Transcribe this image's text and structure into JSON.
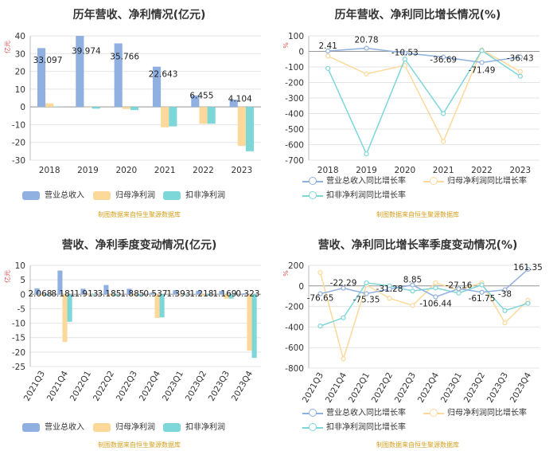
{
  "panels": [
    {
      "title": "历年营收、净利情况(亿元)",
      "source": "制图数据来自恒生聚源数据库",
      "legend": [
        "营业总收入",
        "归母净利润",
        "扣非净利润"
      ],
      "colors": [
        "#8fb0e0",
        "#fcd89a",
        "#7dd6d8"
      ],
      "unit": "亿元"
    },
    {
      "title": "历年营收、净利同比增长情况(%)",
      "source": "制图数据来自恒生聚源数据库",
      "legend": [
        "营业总收入同比增长率",
        "归母净利润同比增长率",
        "扣非净利润同比增长率"
      ],
      "colors": [
        "#8fb0e0",
        "#fcd89a",
        "#7dd6d8"
      ],
      "unit": "%"
    },
    {
      "title": "营收、净利季度变动情况(亿元)",
      "source": "制图数据来自恒生聚源数据库",
      "legend": [
        "营业总收入",
        "归母净利润",
        "扣非净利润"
      ],
      "colors": [
        "#8fb0e0",
        "#fcd89a",
        "#7dd6d8"
      ],
      "unit": "亿元"
    },
    {
      "title": "营收、净利同比增长率季度变动情况(%)",
      "source": "制图数据来自恒生聚源数据库",
      "legend": [
        "营业总收入同比增长率",
        "归母净利润同比增长率",
        "扣非净利润同比增长率"
      ],
      "colors": [
        "#8fb0e0",
        "#fcd89a",
        "#7dd6d8"
      ],
      "unit": "%"
    }
  ],
  "chart_data": [
    {
      "type": "bar",
      "title": "历年营收、净利情况(亿元)",
      "ylabel": "亿元",
      "categories": [
        "2018",
        "2019",
        "2020",
        "2021",
        "2022",
        "2023"
      ],
      "ylim": [
        -30,
        40
      ],
      "yticks": [
        40,
        30,
        20,
        10,
        0,
        -10,
        -20,
        -30
      ],
      "series": [
        {
          "name": "营业总收入",
          "values": [
            33.097,
            39.974,
            35.766,
            22.643,
            6.455,
            4.104
          ],
          "labels": [
            "33.097",
            "39.974",
            "35.766",
            "22.643",
            "6.455",
            "4.104"
          ]
        },
        {
          "name": "归母净利润",
          "values": [
            2.0,
            -0.3,
            -1.2,
            -11.5,
            -9.5,
            -22.0
          ]
        },
        {
          "name": "扣非净利润",
          "values": [
            0.2,
            -1.0,
            -1.8,
            -11.0,
            -9.5,
            -25.0
          ]
        }
      ]
    },
    {
      "type": "line",
      "title": "历年营收、净利同比增长情况(%)",
      "ylabel": "%",
      "categories": [
        "2018",
        "2019",
        "2020",
        "2021",
        "2022",
        "2023"
      ],
      "ylim": [
        -700,
        100
      ],
      "yticks": [
        100,
        0,
        -100,
        -200,
        -300,
        -400,
        -500,
        -600,
        -700
      ],
      "series": [
        {
          "name": "营业总收入同比增长率",
          "values": [
            2.41,
            20.78,
            -10.53,
            -36.69,
            -71.49,
            -36.43
          ],
          "labels": [
            "2.41",
            "20.78",
            "-10.53",
            "-36.69",
            "-71.49",
            "-36.43"
          ]
        },
        {
          "name": "归母净利润同比增长率",
          "values": [
            -30,
            -145,
            -90,
            -580,
            10,
            -130
          ]
        },
        {
          "name": "扣非净利润同比增长率",
          "values": [
            -110,
            -660,
            -50,
            -400,
            5,
            -160
          ]
        }
      ]
    },
    {
      "type": "bar",
      "title": "营收、净利季度变动情况(亿元)",
      "ylabel": "亿元",
      "categories": [
        "2021Q3",
        "2021Q4",
        "2022Q1",
        "2022Q2",
        "2022Q3",
        "2022Q4",
        "2023Q1",
        "2023Q2",
        "2023Q3",
        "2023Q4"
      ],
      "ylim": [
        -25,
        10
      ],
      "yticks": [
        10,
        5,
        0,
        -5,
        -10,
        -15,
        -20,
        -25
      ],
      "series": [
        {
          "name": "营业总收入",
          "values": [
            2.068,
            8.181,
            1.913,
            3.185,
            1.885,
            0.537,
            1.393,
            1.218,
            1.169,
            0.323
          ],
          "labels": [
            "2.068",
            "8.181",
            "1.913",
            "3.185",
            "1.885",
            "0.537",
            "1.393",
            "1.218",
            "1.169",
            "0.323"
          ]
        },
        {
          "name": "归母净利润",
          "values": [
            -0.5,
            -16.5,
            -0.3,
            -0.5,
            -0.5,
            -8.2,
            -0.3,
            -0.5,
            -1.5,
            -19.5
          ]
        },
        {
          "name": "扣非净利润",
          "values": [
            -0.5,
            -9.5,
            -0.3,
            -0.5,
            -0.6,
            -8.0,
            -0.3,
            -0.5,
            -1.5,
            -22.0
          ]
        }
      ]
    },
    {
      "type": "line",
      "title": "营收、净利同比增长率季度变动情况(%)",
      "ylabel": "%",
      "categories": [
        "2021Q3",
        "2021Q4",
        "2022Q1",
        "2022Q2",
        "2022Q3",
        "2022Q4",
        "2023Q1",
        "2023Q2",
        "2023Q3",
        "2023Q4"
      ],
      "ylim": [
        -800,
        200
      ],
      "yticks": [
        200,
        0,
        -200,
        -400,
        -600,
        -800
      ],
      "series": [
        {
          "name": "营业总收入同比增长率",
          "values": [
            -76.65,
            -22.29,
            -75.35,
            -31.28,
            8.85,
            -106.44,
            -27.16,
            -61.75,
            -38,
            161.35
          ],
          "labels": [
            "-76.65",
            "-22.29",
            "-75.35",
            "-31.28",
            "8.85",
            "-106.44",
            "-27.16",
            "-61.75",
            "-38",
            "161.35"
          ]
        },
        {
          "name": "归母净利润同比增长率",
          "values": [
            130,
            -710,
            10,
            -120,
            -190,
            30,
            -40,
            30,
            -360,
            -140
          ]
        },
        {
          "name": "扣非净利润同比增长率",
          "values": [
            -390,
            -310,
            30,
            0,
            -50,
            -20,
            -70,
            10,
            -240,
            -170
          ]
        }
      ]
    }
  ]
}
